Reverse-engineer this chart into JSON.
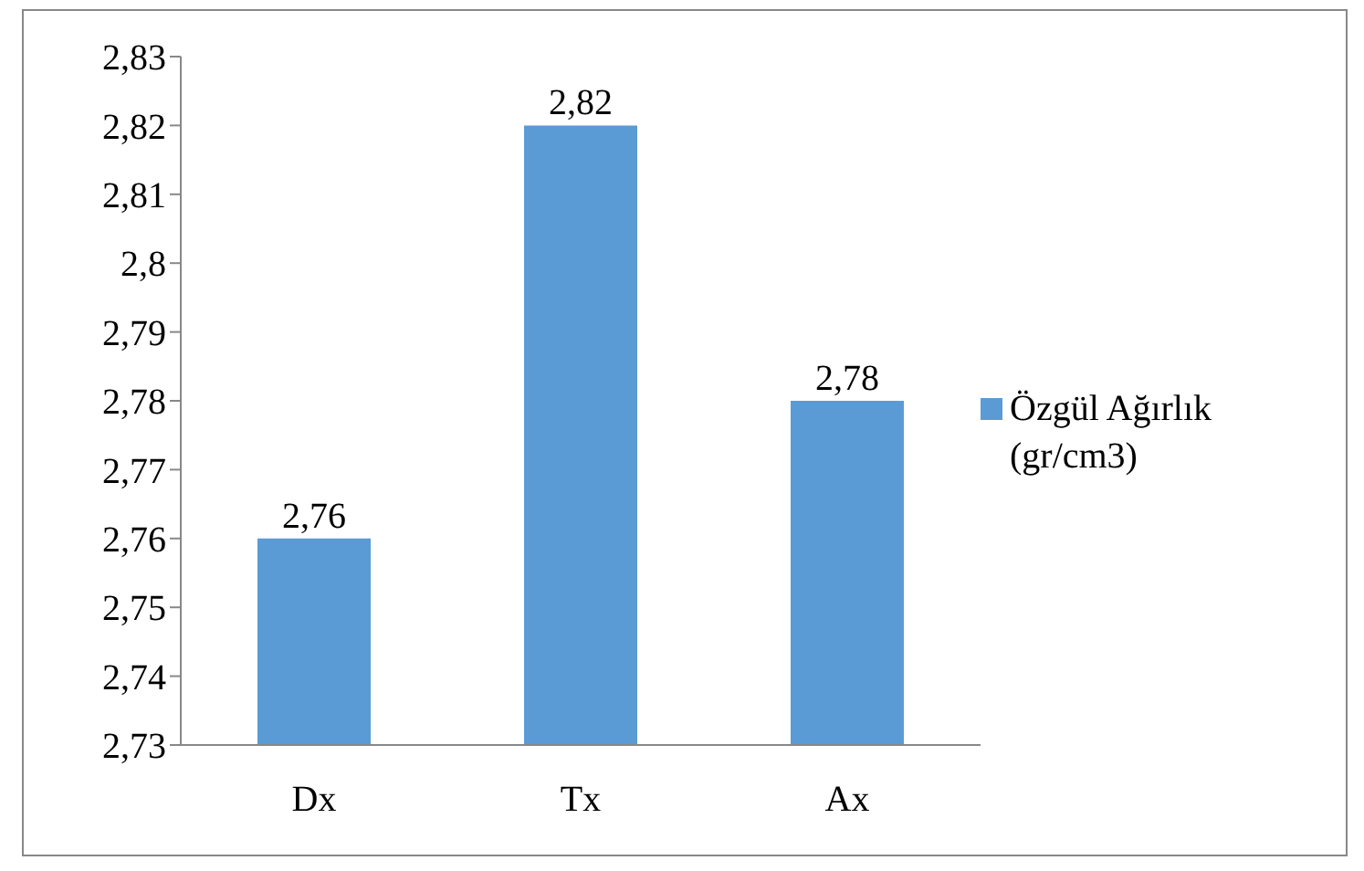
{
  "chart_data": {
    "type": "bar",
    "categories": [
      "Dx",
      "Tx",
      "Ax"
    ],
    "series": [
      {
        "name": "Özgül Ağırlık (gr/cm3)",
        "color": "#5b9bd5",
        "values": [
          2.76,
          2.82,
          2.78
        ],
        "value_labels": [
          "2,76",
          "2,82",
          "2,78"
        ]
      }
    ],
    "ylim": [
      2.73,
      2.83
    ],
    "yticks": [
      {
        "value": 2.73,
        "label": "2,73"
      },
      {
        "value": 2.74,
        "label": "2,74"
      },
      {
        "value": 2.75,
        "label": "2,75"
      },
      {
        "value": 2.76,
        "label": "2,76"
      },
      {
        "value": 2.77,
        "label": "2,77"
      },
      {
        "value": 2.78,
        "label": "2,78"
      },
      {
        "value": 2.79,
        "label": "2,79"
      },
      {
        "value": 2.8,
        "label": "2,8"
      },
      {
        "value": 2.81,
        "label": "2,81"
      },
      {
        "value": 2.82,
        "label": "2,82"
      },
      {
        "value": 2.83,
        "label": "2,83"
      }
    ],
    "grid": false,
    "legend": "right"
  }
}
